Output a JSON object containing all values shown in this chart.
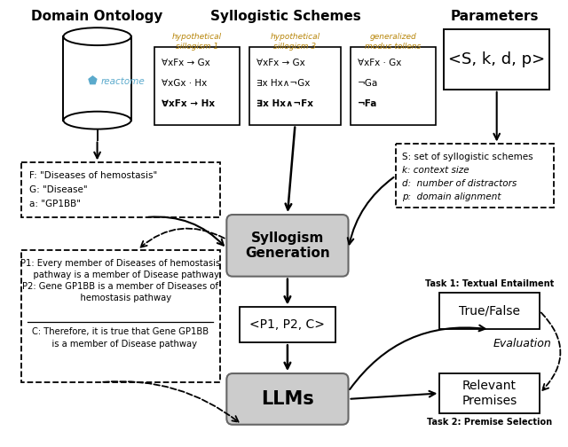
{
  "bg_color": "#ffffff",
  "header_domain": "Domain Ontology",
  "header_syllogistic": "Syllogistic Schemes",
  "header_parameters": "Parameters",
  "scheme1_title": "hypothetical\nsillogism 1",
  "scheme1_lines": [
    "∀xFx → Gx",
    "∀xGx · Hx",
    "∀xFx → Hx"
  ],
  "scheme1_bold_line": 2,
  "scheme2_title": "hypothetical\nsillogism 3",
  "scheme2_lines": [
    "∀xFx → Gx",
    "∃x Hx∧¬Gx",
    "∃x Hx∧¬Fx"
  ],
  "scheme2_bold_line": 2,
  "scheme3_title": "generalized\nmodus tollens",
  "scheme3_lines": [
    "∀xFx · Gx",
    "¬Ga",
    "¬Fa"
  ],
  "scheme3_bold_line": 2,
  "params_text": "<S, k, d, p>",
  "params_desc_lines": [
    "S: set of syllogistic schemes",
    "k: context size",
    "d:  number of distractors",
    "p:  domain alignment"
  ],
  "params_desc_italic": [
    false,
    true,
    true,
    true
  ],
  "example_vars_lines": [
    "F: \"Diseases of hemostasis\"",
    "G: \"Disease\"",
    "a: \"GP1BB\""
  ],
  "example_p1p2": "P1: Every member of Diseases of hemostasis\n    pathway is a member of Disease pathway\nP2: Gene GP1BB is a member of Diseases of\n    hemostasis pathway",
  "example_c": "C: Therefore, it is true that Gene GP1BB\n   is a member of Disease pathway",
  "syllogism_gen_text": "Syllogism\nGeneration",
  "tuple_text": "<P1, P2, C>",
  "llms_text": "LLMs",
  "true_false_text": "True/False",
  "relevant_premises_text": "Relevant\nPremises",
  "task1_label": "Task 1: Textual Entailment",
  "task2_label": "Task 2: Premise Selection",
  "evaluation_label": "Evaluation",
  "scheme_title_color": "#b8860b",
  "reactome_color": "#5baacc"
}
